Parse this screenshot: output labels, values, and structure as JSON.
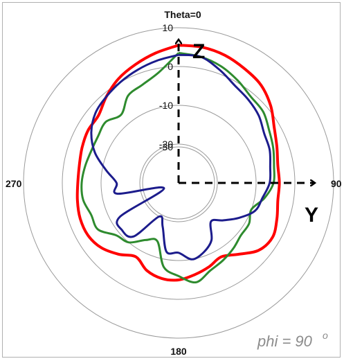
{
  "chart_data": {
    "type": "polar",
    "angle_labels": [
      {
        "text": "Theta=0",
        "angle": 0
      },
      {
        "text": "90",
        "angle": 90
      },
      {
        "text": "180",
        "angle": 180
      },
      {
        "text": "270",
        "angle": 270
      }
    ],
    "radial_ticks": [
      "10",
      "0",
      "-10",
      "-20",
      "-30"
    ],
    "radial_values": [
      10,
      0,
      -10,
      -20,
      -30
    ],
    "rlim": [
      -30,
      10
    ],
    "grid": true,
    "axis_labels": {
      "z": "Z",
      "y": "Y"
    },
    "annotation": {
      "main": "phi = 90",
      "sup": "o"
    },
    "series": [
      {
        "color": "#ff0000",
        "theta": [
          0,
          10,
          20,
          30,
          40,
          50,
          60,
          70,
          80,
          90,
          100,
          110,
          120,
          130,
          140,
          150,
          160,
          170,
          180,
          190,
          200,
          210,
          220,
          230,
          240,
          250,
          260,
          270,
          280,
          290,
          300,
          310,
          320,
          330,
          340,
          350,
          360
        ],
        "r": [
          5.5,
          5.5,
          5,
          4,
          3,
          1,
          -1.5,
          -3,
          -4,
          -4,
          -4,
          -3,
          -2,
          -3,
          -6,
          -8,
          -7,
          -6,
          -5,
          -5,
          -6,
          -8,
          -6,
          -4,
          -3,
          -3,
          -3.5,
          -4,
          -4,
          -3.5,
          -3,
          -3,
          -1,
          1,
          2.5,
          4,
          5.5
        ]
      },
      {
        "color": "#2e8b2e",
        "theta": [
          0,
          10,
          20,
          30,
          40,
          50,
          60,
          70,
          80,
          90,
          100,
          110,
          120,
          130,
          140,
          150,
          160,
          170,
          180,
          190,
          200,
          210,
          220,
          230,
          240,
          250,
          260,
          270,
          280,
          290,
          300,
          310,
          320,
          330,
          340,
          350,
          360
        ],
        "r": [
          3.5,
          3,
          2,
          0.5,
          -1,
          -1.5,
          -3,
          -4,
          -5,
          -5.5,
          -7.5,
          -10,
          -9,
          -9,
          -8,
          -7,
          -6,
          -4,
          -6,
          -8,
          -14,
          -13,
          -10,
          -9,
          -6,
          -6,
          -5,
          -5,
          -5.5,
          -6,
          -6,
          -5.5,
          -7,
          -4,
          -3,
          -1,
          3.5
        ]
      },
      {
        "color": "#1c1c8c",
        "theta": [
          0,
          10,
          20,
          30,
          40,
          50,
          60,
          70,
          80,
          90,
          100,
          110,
          120,
          130,
          140,
          150,
          160,
          170,
          180,
          190,
          200,
          210,
          220,
          230,
          240,
          250,
          260,
          270,
          280,
          290,
          300,
          310,
          320,
          330,
          340,
          350,
          360
        ],
        "r": [
          3,
          3,
          1,
          -1,
          -2,
          -3,
          -4.5,
          -5,
          -6,
          -6.5,
          -8,
          -9,
          -12,
          -15,
          -17,
          -13,
          -11,
          -10,
          -12,
          -12,
          -18,
          -20,
          -12,
          -11,
          -12.5,
          -26,
          -14,
          -14,
          -11,
          -7,
          -4,
          -2,
          -1,
          0,
          1,
          2,
          3
        ]
      }
    ]
  }
}
